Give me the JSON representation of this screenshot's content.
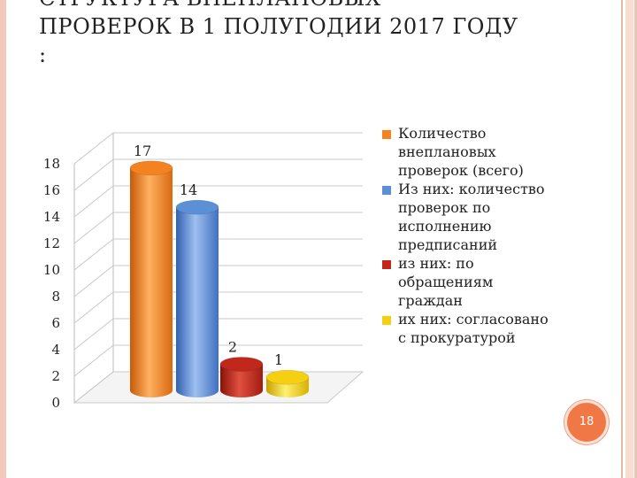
{
  "slide": {
    "title_line1": "СТРУКТУРА ВНЕПЛАНОВЫХ",
    "title_line2": "ПРОВЕРОК В 1 ПОЛУГОДИИ 2017 ГОДУ",
    "title_line3": ":",
    "page_number": "18"
  },
  "chart_data": {
    "type": "bar",
    "style": "3d-cylinder",
    "categories": [
      "Количество внеплановых проверок (всего)",
      "Из них: количество проверок по исполнению предписаний",
      "из них: по обращениям граждан",
      "их них: согласовано с прокуратурой"
    ],
    "values": [
      17,
      14,
      2,
      1
    ],
    "colors": [
      "#f58220",
      "#5b8fd6",
      "#c0281c",
      "#f5d012"
    ],
    "ylim": [
      0,
      18
    ],
    "yticks": [
      "0",
      "2",
      "4",
      "6",
      "8",
      "10",
      "12",
      "14",
      "16",
      "18"
    ],
    "grid": true,
    "legend_position": "right"
  }
}
